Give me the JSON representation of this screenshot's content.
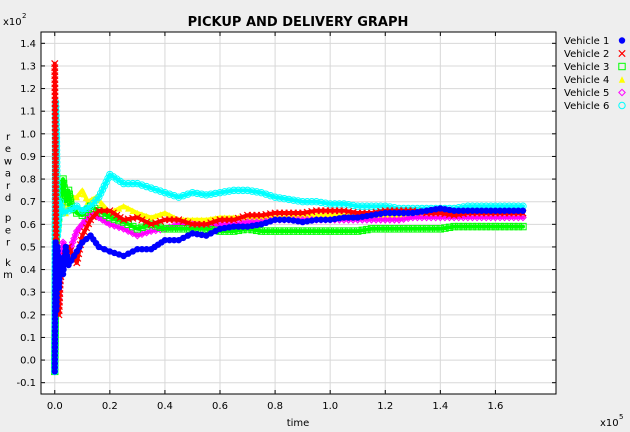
{
  "chart_data": {
    "type": "line",
    "title": "PICKUP AND DELIVERY GRAPH",
    "xlabel": "time",
    "ylabel": "reward per km",
    "x_multiplier": "x10",
    "x_multiplier_exp": "5",
    "y_multiplier": "x10",
    "y_multiplier_exp": "2",
    "xlim": [
      -0.05,
      1.82
    ],
    "ylim": [
      -0.15,
      1.45
    ],
    "x_ticks": [
      {
        "value": 0.0,
        "label": "0.0"
      },
      {
        "value": 0.2,
        "label": "0.2"
      },
      {
        "value": 0.4,
        "label": "0.4"
      },
      {
        "value": 0.6,
        "label": "0.6"
      },
      {
        "value": 0.8,
        "label": "0.8"
      },
      {
        "value": 1.0,
        "label": "1.0"
      },
      {
        "value": 1.2,
        "label": "1.2"
      },
      {
        "value": 1.4,
        "label": "1.4"
      },
      {
        "value": 1.6,
        "label": "1.6"
      }
    ],
    "y_ticks": [
      {
        "value": -0.1,
        "label": "-0.1"
      },
      {
        "value": 0.0,
        "label": "0.0"
      },
      {
        "value": 0.1,
        "label": "0.1"
      },
      {
        "value": 0.2,
        "label": "0.2"
      },
      {
        "value": 0.3,
        "label": "0.3"
      },
      {
        "value": 0.4,
        "label": "0.4"
      },
      {
        "value": 0.5,
        "label": "0.5"
      },
      {
        "value": 0.6,
        "label": "0.6"
      },
      {
        "value": 0.7,
        "label": "0.7"
      },
      {
        "value": 0.8,
        "label": "0.8"
      },
      {
        "value": 0.9,
        "label": "0.9"
      },
      {
        "value": 1.0,
        "label": "1.0"
      },
      {
        "value": 1.1,
        "label": "1.1"
      },
      {
        "value": 1.2,
        "label": "1.2"
      },
      {
        "value": 1.3,
        "label": "1.3"
      },
      {
        "value": 1.4,
        "label": "1.4"
      }
    ],
    "grid": true,
    "legend_position": "right",
    "series": [
      {
        "name": "Vehicle 1",
        "color": "#0000ff",
        "marker": "circle-filled",
        "x": [
          0.0,
          0.003,
          0.006,
          0.01,
          0.015,
          0.02,
          0.03,
          0.04,
          0.05,
          0.07,
          0.1,
          0.13,
          0.16,
          0.2,
          0.25,
          0.3,
          0.35,
          0.4,
          0.45,
          0.5,
          0.55,
          0.6,
          0.65,
          0.7,
          0.75,
          0.8,
          0.85,
          0.9,
          0.95,
          1.0,
          1.05,
          1.1,
          1.15,
          1.2,
          1.25,
          1.3,
          1.35,
          1.4,
          1.45,
          1.5,
          1.55,
          1.6,
          1.65,
          1.7
        ],
        "y": [
          -0.05,
          0.52,
          0.22,
          0.5,
          0.32,
          0.45,
          0.38,
          0.5,
          0.42,
          0.46,
          0.52,
          0.55,
          0.5,
          0.48,
          0.46,
          0.49,
          0.49,
          0.53,
          0.53,
          0.56,
          0.55,
          0.58,
          0.59,
          0.59,
          0.6,
          0.62,
          0.62,
          0.61,
          0.62,
          0.62,
          0.63,
          0.63,
          0.64,
          0.65,
          0.65,
          0.65,
          0.66,
          0.67,
          0.66,
          0.66,
          0.66,
          0.66,
          0.66,
          0.66
        ]
      },
      {
        "name": "Vehicle 2",
        "color": "#ff0000",
        "marker": "x",
        "x": [
          0.0,
          0.003,
          0.006,
          0.01,
          0.015,
          0.02,
          0.03,
          0.05,
          0.08,
          0.1,
          0.13,
          0.16,
          0.2,
          0.25,
          0.3,
          0.35,
          0.4,
          0.45,
          0.5,
          0.55,
          0.6,
          0.65,
          0.7,
          0.75,
          0.8,
          0.85,
          0.9,
          0.95,
          1.0,
          1.05,
          1.1,
          1.15,
          1.2,
          1.25,
          1.3,
          1.35,
          1.4,
          1.45,
          1.5,
          1.55,
          1.6,
          1.65,
          1.7
        ],
        "y": [
          1.31,
          0.74,
          0.42,
          0.26,
          0.2,
          0.35,
          0.44,
          0.5,
          0.43,
          0.55,
          0.62,
          0.66,
          0.66,
          0.62,
          0.63,
          0.6,
          0.62,
          0.62,
          0.6,
          0.6,
          0.62,
          0.62,
          0.64,
          0.64,
          0.65,
          0.65,
          0.65,
          0.66,
          0.66,
          0.66,
          0.65,
          0.65,
          0.66,
          0.66,
          0.66,
          0.65,
          0.65,
          0.64,
          0.65,
          0.65,
          0.65,
          0.65,
          0.65
        ]
      },
      {
        "name": "Vehicle 3",
        "color": "#00ff00",
        "marker": "square",
        "x": [
          0.0,
          0.003,
          0.006,
          0.01,
          0.015,
          0.02,
          0.025,
          0.03,
          0.04,
          0.05,
          0.06,
          0.08,
          0.1,
          0.13,
          0.16,
          0.2,
          0.25,
          0.3,
          0.35,
          0.4,
          0.45,
          0.5,
          0.55,
          0.6,
          0.65,
          0.7,
          0.75,
          0.8,
          0.85,
          0.9,
          0.95,
          1.0,
          1.05,
          1.1,
          1.15,
          1.2,
          1.25,
          1.3,
          1.35,
          1.4,
          1.45,
          1.5,
          1.55,
          1.6,
          1.65,
          1.7
        ],
        "y": [
          -0.05,
          0.4,
          0.63,
          0.58,
          0.7,
          0.77,
          0.74,
          0.8,
          0.7,
          0.75,
          0.68,
          0.65,
          0.64,
          0.68,
          0.66,
          0.63,
          0.61,
          0.58,
          0.6,
          0.58,
          0.58,
          0.58,
          0.58,
          0.57,
          0.57,
          0.58,
          0.57,
          0.57,
          0.57,
          0.57,
          0.57,
          0.57,
          0.57,
          0.57,
          0.58,
          0.58,
          0.58,
          0.58,
          0.58,
          0.58,
          0.59,
          0.59,
          0.59,
          0.59,
          0.59,
          0.59
        ]
      },
      {
        "name": "Vehicle 4",
        "color": "#ffff00",
        "marker": "triangle-filled",
        "x": [
          0.0,
          0.003,
          0.006,
          0.01,
          0.015,
          0.02,
          0.03,
          0.04,
          0.05,
          0.06,
          0.08,
          0.1,
          0.12,
          0.15,
          0.2,
          0.25,
          0.3,
          0.35,
          0.4,
          0.45,
          0.5,
          0.55,
          0.6,
          0.65,
          0.7,
          0.75,
          0.8,
          0.85,
          0.9,
          0.95,
          1.0,
          1.05,
          1.1,
          1.15,
          1.2,
          1.25,
          1.3,
          1.35,
          1.4,
          1.45,
          1.5,
          1.55,
          1.6,
          1.65,
          1.7
        ],
        "y": [
          -0.05,
          0.62,
          0.95,
          0.75,
          0.6,
          0.65,
          0.7,
          0.65,
          0.68,
          0.72,
          0.72,
          0.75,
          0.7,
          0.72,
          0.65,
          0.68,
          0.65,
          0.63,
          0.65,
          0.62,
          0.62,
          0.62,
          0.63,
          0.63,
          0.63,
          0.63,
          0.63,
          0.63,
          0.64,
          0.64,
          0.64,
          0.64,
          0.64,
          0.64,
          0.64,
          0.64,
          0.64,
          0.64,
          0.64,
          0.64,
          0.64,
          0.64,
          0.64,
          0.64,
          0.64
        ]
      },
      {
        "name": "Vehicle 5",
        "color": "#ff00ff",
        "marker": "diamond",
        "x": [
          0.0,
          0.003,
          0.006,
          0.01,
          0.015,
          0.02,
          0.03,
          0.05,
          0.08,
          0.1,
          0.13,
          0.16,
          0.2,
          0.25,
          0.3,
          0.35,
          0.4,
          0.45,
          0.5,
          0.55,
          0.6,
          0.65,
          0.7,
          0.75,
          0.8,
          0.85,
          0.9,
          0.95,
          1.0,
          1.05,
          1.1,
          1.15,
          1.2,
          1.25,
          1.3,
          1.35,
          1.4,
          1.45,
          1.5,
          1.55,
          1.6,
          1.65,
          1.7
        ],
        "y": [
          -0.05,
          0.63,
          0.3,
          0.28,
          0.25,
          0.4,
          0.52,
          0.47,
          0.57,
          0.6,
          0.65,
          0.63,
          0.6,
          0.58,
          0.55,
          0.57,
          0.58,
          0.6,
          0.6,
          0.59,
          0.6,
          0.6,
          0.61,
          0.61,
          0.62,
          0.62,
          0.62,
          0.62,
          0.62,
          0.62,
          0.62,
          0.62,
          0.62,
          0.62,
          0.63,
          0.63,
          0.63,
          0.63,
          0.63,
          0.63,
          0.63,
          0.63,
          0.63
        ]
      },
      {
        "name": "Vehicle 6",
        "color": "#00ffff",
        "marker": "circle",
        "x": [
          0.0,
          0.003,
          0.006,
          0.01,
          0.015,
          0.02,
          0.03,
          0.05,
          0.08,
          0.1,
          0.13,
          0.16,
          0.2,
          0.25,
          0.3,
          0.35,
          0.4,
          0.45,
          0.5,
          0.55,
          0.6,
          0.65,
          0.7,
          0.75,
          0.8,
          0.85,
          0.9,
          0.95,
          1.0,
          1.05,
          1.1,
          1.15,
          1.2,
          1.25,
          1.3,
          1.35,
          1.4,
          1.45,
          1.5,
          1.55,
          1.6,
          1.65,
          1.7
        ],
        "y": [
          -0.05,
          1.14,
          1.0,
          0.55,
          0.62,
          0.7,
          0.65,
          0.66,
          0.68,
          0.66,
          0.68,
          0.72,
          0.82,
          0.78,
          0.78,
          0.76,
          0.74,
          0.72,
          0.74,
          0.73,
          0.74,
          0.75,
          0.75,
          0.74,
          0.72,
          0.71,
          0.7,
          0.7,
          0.69,
          0.69,
          0.68,
          0.68,
          0.68,
          0.67,
          0.67,
          0.67,
          0.67,
          0.67,
          0.68,
          0.68,
          0.68,
          0.68,
          0.68
        ]
      }
    ]
  }
}
